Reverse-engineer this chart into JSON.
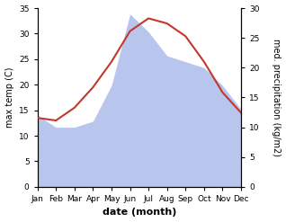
{
  "months": [
    "Jan",
    "Feb",
    "Mar",
    "Apr",
    "May",
    "Jun",
    "Jul",
    "Aug",
    "Sep",
    "Oct",
    "Nov",
    "Dec"
  ],
  "temp": [
    13.5,
    13.0,
    15.5,
    19.5,
    24.5,
    30.5,
    33.0,
    32.0,
    29.5,
    24.5,
    18.5,
    14.5
  ],
  "precip": [
    12.0,
    10.0,
    10.0,
    11.0,
    17.0,
    29.0,
    26.0,
    22.0,
    21.0,
    20.0,
    17.0,
    13.0
  ],
  "temp_color": "#c0392b",
  "precip_color": "#b8c5ed",
  "temp_ylim": [
    0,
    35
  ],
  "precip_ylim": [
    0,
    30
  ],
  "temp_yticks": [
    0,
    5,
    10,
    15,
    20,
    25,
    30,
    35
  ],
  "precip_yticks": [
    0,
    5,
    10,
    15,
    20,
    25,
    30
  ],
  "xlabel": "date (month)",
  "ylabel_left": "max temp (C)",
  "ylabel_right": "med. precipitation (kg/m2)",
  "background_color": "#ffffff",
  "label_fontsize": 7.5,
  "tick_fontsize": 6.5
}
